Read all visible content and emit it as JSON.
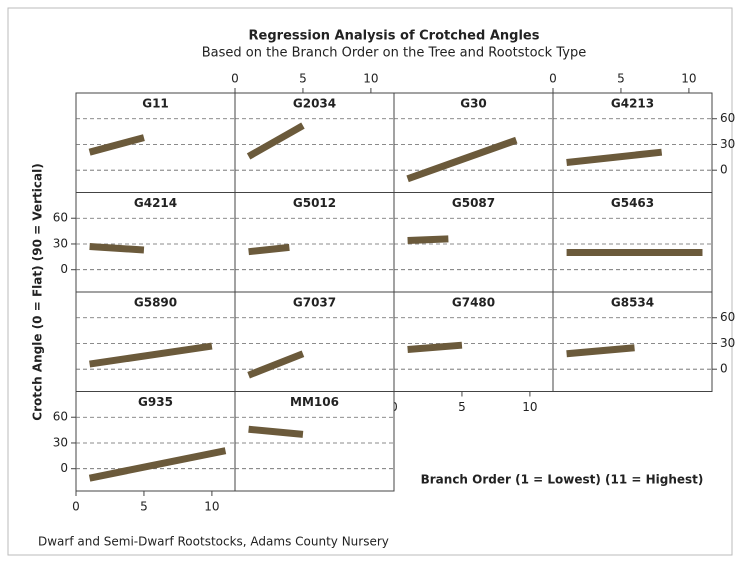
{
  "chart_data": {
    "type": "line",
    "title": "Regression Analysis of Crotched Angles",
    "subtitle": "Based on the Branch Order on the Tree and Rootstock Type",
    "xlabel": "Branch Order  (1 = Lowest)  (11 = Highest)",
    "ylabel": "Crotch Angle (0 = Flat)  (90 = Vertical)",
    "footnote": "Dwarf and Semi-Dwarf Rootstocks, Adams County Nursery",
    "xlim": [
      0,
      11.7
    ],
    "xticks": [
      0,
      5,
      10
    ],
    "ylim": [
      -26,
      90
    ],
    "yticks": [
      0,
      30,
      60
    ],
    "grid": true,
    "color": "#6b5a3b",
    "panels": [
      {
        "name": "G11",
        "x": [
          1,
          5
        ],
        "values": [
          21,
          38
        ]
      },
      {
        "name": "G2034",
        "x": [
          1,
          5
        ],
        "values": [
          16,
          52
        ]
      },
      {
        "name": "G30",
        "x": [
          1,
          9
        ],
        "values": [
          -10,
          35
        ]
      },
      {
        "name": "G4213",
        "x": [
          1,
          8
        ],
        "values": [
          9,
          21
        ]
      },
      {
        "name": "G4214",
        "x": [
          1,
          5
        ],
        "values": [
          27,
          23
        ]
      },
      {
        "name": "G5012",
        "x": [
          1,
          4
        ],
        "values": [
          21,
          26
        ]
      },
      {
        "name": "G5087",
        "x": [
          1,
          4
        ],
        "values": [
          34,
          36
        ]
      },
      {
        "name": "G5463",
        "x": [
          1,
          11
        ],
        "values": [
          20,
          20
        ]
      },
      {
        "name": "G5890",
        "x": [
          1,
          10
        ],
        "values": [
          6,
          27
        ]
      },
      {
        "name": "G7037",
        "x": [
          1,
          5
        ],
        "values": [
          -7,
          18
        ]
      },
      {
        "name": "G7480",
        "x": [
          1,
          5
        ],
        "values": [
          23,
          28
        ]
      },
      {
        "name": "G8534",
        "x": [
          1,
          6
        ],
        "values": [
          18,
          25
        ]
      },
      {
        "name": "G935",
        "x": [
          1,
          11
        ],
        "values": [
          -11,
          21
        ]
      },
      {
        "name": "MM106",
        "x": [
          1,
          5
        ],
        "values": [
          46,
          40
        ]
      }
    ]
  }
}
